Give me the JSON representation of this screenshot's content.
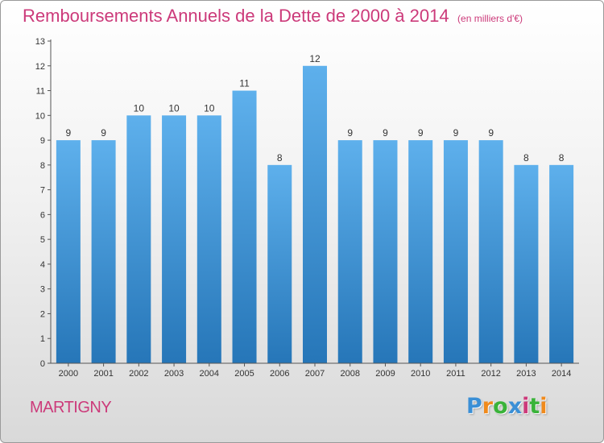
{
  "header": {
    "title": "Remboursements Annuels de la Dette de 2000 à 2014",
    "unit_note": "(en milliers d'€)"
  },
  "footer": {
    "place": "MARTIGNY",
    "logo_text": "Proxiti",
    "logo_colors": [
      "#3a8fd6",
      "#f08a1c",
      "#3ab33a",
      "#3a8fd6",
      "#cc3a7a",
      "#3ab33a",
      "#f08a1c"
    ]
  },
  "colors": {
    "accent": "#cc3a7a",
    "bar_top": "#5eb0ec",
    "bar_bottom": "#2676b8"
  },
  "chart_data": {
    "type": "bar",
    "title": "Remboursements Annuels de la Dette de 2000 à 2014",
    "subtitle": "(en milliers d'€)",
    "xlabel": "",
    "ylabel": "",
    "categories": [
      "2000",
      "2001",
      "2002",
      "2003",
      "2004",
      "2005",
      "2006",
      "2007",
      "2008",
      "2009",
      "2010",
      "2011",
      "2012",
      "2013",
      "2014"
    ],
    "values": [
      9,
      9,
      10,
      10,
      10,
      11,
      8,
      12,
      9,
      9,
      9,
      9,
      9,
      8,
      8
    ],
    "data_labels": [
      "9",
      "9",
      "10",
      "10",
      "10",
      "11",
      "8",
      "12",
      "9",
      "9",
      "9",
      "9",
      "9",
      "8",
      "8"
    ],
    "ylim": [
      0,
      13
    ],
    "yticks": [
      0,
      1,
      2,
      3,
      4,
      5,
      6,
      7,
      8,
      9,
      10,
      11,
      12,
      13
    ],
    "grid": false,
    "legend": "none"
  }
}
